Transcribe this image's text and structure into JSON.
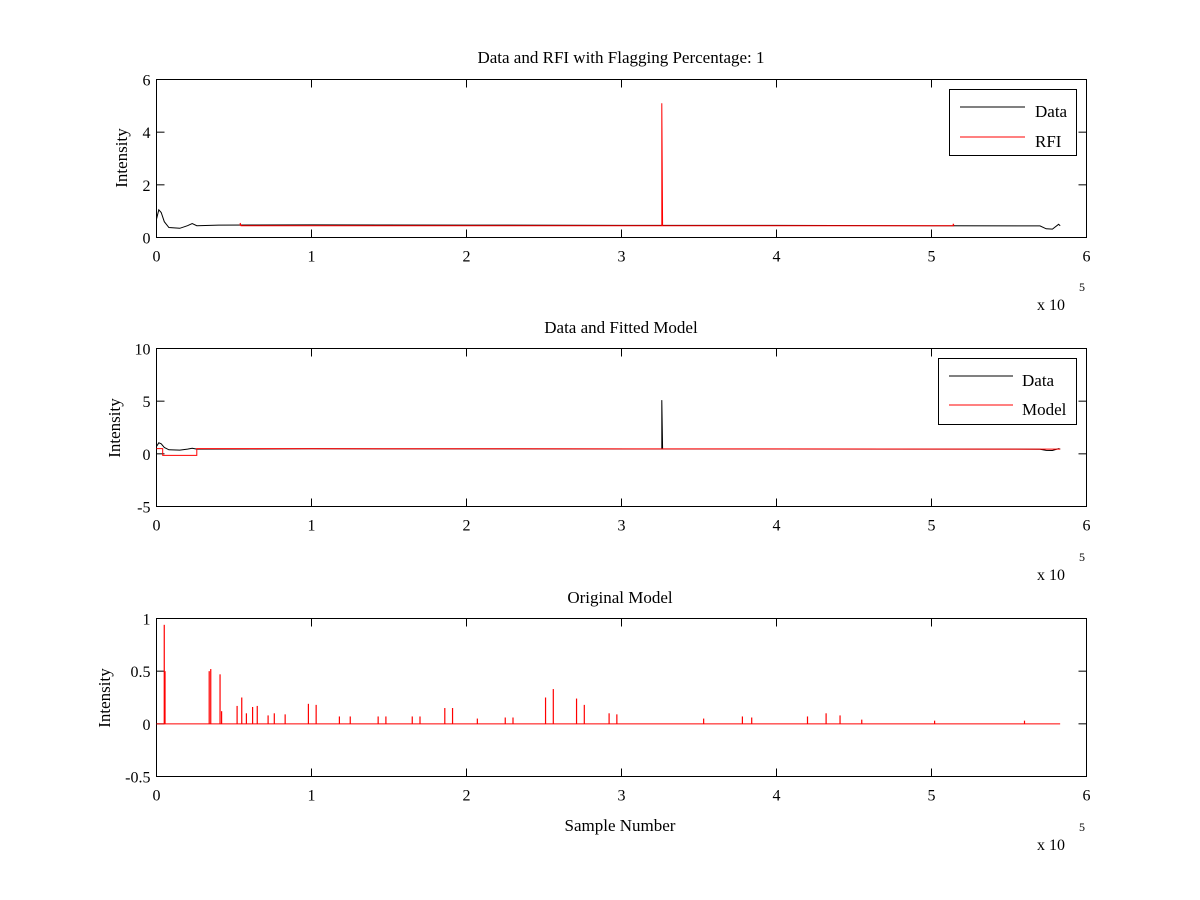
{
  "chart_data": [
    {
      "type": "line",
      "title": "Data and RFI with Flagging Percentage: 1",
      "ylabel": "Intensity",
      "xlabel": "",
      "xlim": [
        0,
        600000
      ],
      "ylim": [
        0,
        6
      ],
      "xticks": [
        0,
        1,
        2,
        3,
        4,
        5,
        6
      ],
      "yticks": [
        0,
        2,
        4,
        6
      ],
      "x_multiplier": {
        "base": "x 10",
        "exponent": "5"
      },
      "grid": false,
      "legend": "top-right",
      "series": [
        {
          "name": "Data",
          "color": "#000000",
          "points": [
            [
              0,
              0.7
            ],
            [
              1500,
              1.05
            ],
            [
              3000,
              0.95
            ],
            [
              5000,
              0.6
            ],
            [
              8000,
              0.38
            ],
            [
              15000,
              0.35
            ],
            [
              20000,
              0.45
            ],
            [
              23000,
              0.53
            ],
            [
              26000,
              0.45
            ],
            [
              40000,
              0.47
            ],
            [
              100000,
              0.48
            ],
            [
              200000,
              0.47
            ],
            [
              300000,
              0.46
            ],
            [
              325000,
              0.46
            ],
            [
              400000,
              0.46
            ],
            [
              500000,
              0.45
            ],
            [
              570000,
              0.44
            ],
            [
              574000,
              0.33
            ],
            [
              578000,
              0.32
            ],
            [
              582000,
              0.5
            ],
            [
              583000,
              0.45
            ]
          ]
        },
        {
          "name": "RFI",
          "color": "#ff0000",
          "points": [
            [
              54000,
              0.45
            ],
            [
              54000,
              0.55
            ],
            [
              54500,
              0.45
            ],
            [
              326000,
              0.45
            ],
            [
              326000,
              5.1
            ],
            [
              326500,
              0.45
            ],
            [
              514000,
              0.45
            ],
            [
              514000,
              0.52
            ],
            [
              514500,
              0.45
            ]
          ]
        }
      ]
    },
    {
      "type": "line",
      "title": "Data and Fitted Model",
      "ylabel": "Intensity",
      "xlabel": "",
      "xlim": [
        0,
        600000
      ],
      "ylim": [
        -5,
        10
      ],
      "xticks": [
        0,
        1,
        2,
        3,
        4,
        5,
        6
      ],
      "yticks": [
        -5,
        0,
        5,
        10
      ],
      "x_multiplier": {
        "base": "x 10",
        "exponent": "5"
      },
      "grid": false,
      "legend": "top-right",
      "series": [
        {
          "name": "Data",
          "color": "#000000",
          "points": [
            [
              0,
              0.7
            ],
            [
              1500,
              1.05
            ],
            [
              3000,
              0.95
            ],
            [
              5000,
              0.6
            ],
            [
              8000,
              0.38
            ],
            [
              15000,
              0.35
            ],
            [
              20000,
              0.45
            ],
            [
              23000,
              0.53
            ],
            [
              26000,
              0.45
            ],
            [
              100000,
              0.48
            ],
            [
              200000,
              0.47
            ],
            [
              326000,
              0.46
            ],
            [
              326000,
              5.1
            ],
            [
              326500,
              0.46
            ],
            [
              400000,
              0.46
            ],
            [
              500000,
              0.45
            ],
            [
              570000,
              0.44
            ],
            [
              574000,
              0.33
            ],
            [
              578000,
              0.32
            ],
            [
              582000,
              0.5
            ],
            [
              583000,
              0.45
            ]
          ]
        },
        {
          "name": "Model",
          "color": "#ff0000",
          "points": [
            [
              0,
              0.5
            ],
            [
              4000,
              0.5
            ],
            [
              4000,
              -0.15
            ],
            [
              26000,
              -0.15
            ],
            [
              26000,
              0.5
            ],
            [
              583000,
              0.45
            ]
          ]
        }
      ]
    },
    {
      "type": "line",
      "title": "Original Model",
      "ylabel": "Intensity",
      "xlabel": "Sample Number",
      "xlim": [
        0,
        600000
      ],
      "ylim": [
        -0.5,
        1
      ],
      "xticks": [
        0,
        1,
        2,
        3,
        4,
        5,
        6
      ],
      "yticks": [
        -0.5,
        0,
        0.5,
        1
      ],
      "x_multiplier": {
        "base": "x 10",
        "exponent": "5"
      },
      "grid": false,
      "legend": "none",
      "series": [
        {
          "color": "#ff0000",
          "baseline": 0,
          "span": [
            0,
            583000
          ],
          "spikes": [
            [
              5000,
              0.94
            ],
            [
              5500,
              0.5
            ],
            [
              34000,
              0.5
            ],
            [
              35000,
              0.52
            ],
            [
              41000,
              0.47
            ],
            [
              42000,
              0.12
            ],
            [
              52000,
              0.17
            ],
            [
              55000,
              0.25
            ],
            [
              58000,
              0.1
            ],
            [
              62000,
              0.16
            ],
            [
              65000,
              0.17
            ],
            [
              72000,
              0.08
            ],
            [
              76000,
              0.1
            ],
            [
              83000,
              0.09
            ],
            [
              98000,
              0.19
            ],
            [
              103000,
              0.18
            ],
            [
              118000,
              0.07
            ],
            [
              125000,
              0.07
            ],
            [
              143000,
              0.07
            ],
            [
              148000,
              0.07
            ],
            [
              165000,
              0.07
            ],
            [
              170000,
              0.07
            ],
            [
              186000,
              0.15
            ],
            [
              191000,
              0.15
            ],
            [
              207000,
              0.05
            ],
            [
              225000,
              0.06
            ],
            [
              230000,
              0.06
            ],
            [
              251000,
              0.25
            ],
            [
              256000,
              0.33
            ],
            [
              271000,
              0.24
            ],
            [
              276000,
              0.18
            ],
            [
              292000,
              0.1
            ],
            [
              297000,
              0.09
            ],
            [
              353000,
              0.05
            ],
            [
              378000,
              0.07
            ],
            [
              384000,
              0.06
            ],
            [
              420000,
              0.07
            ],
            [
              432000,
              0.1
            ],
            [
              441000,
              0.08
            ],
            [
              455000,
              0.04
            ],
            [
              502000,
              0.03
            ],
            [
              560000,
              0.03
            ]
          ]
        }
      ]
    }
  ]
}
